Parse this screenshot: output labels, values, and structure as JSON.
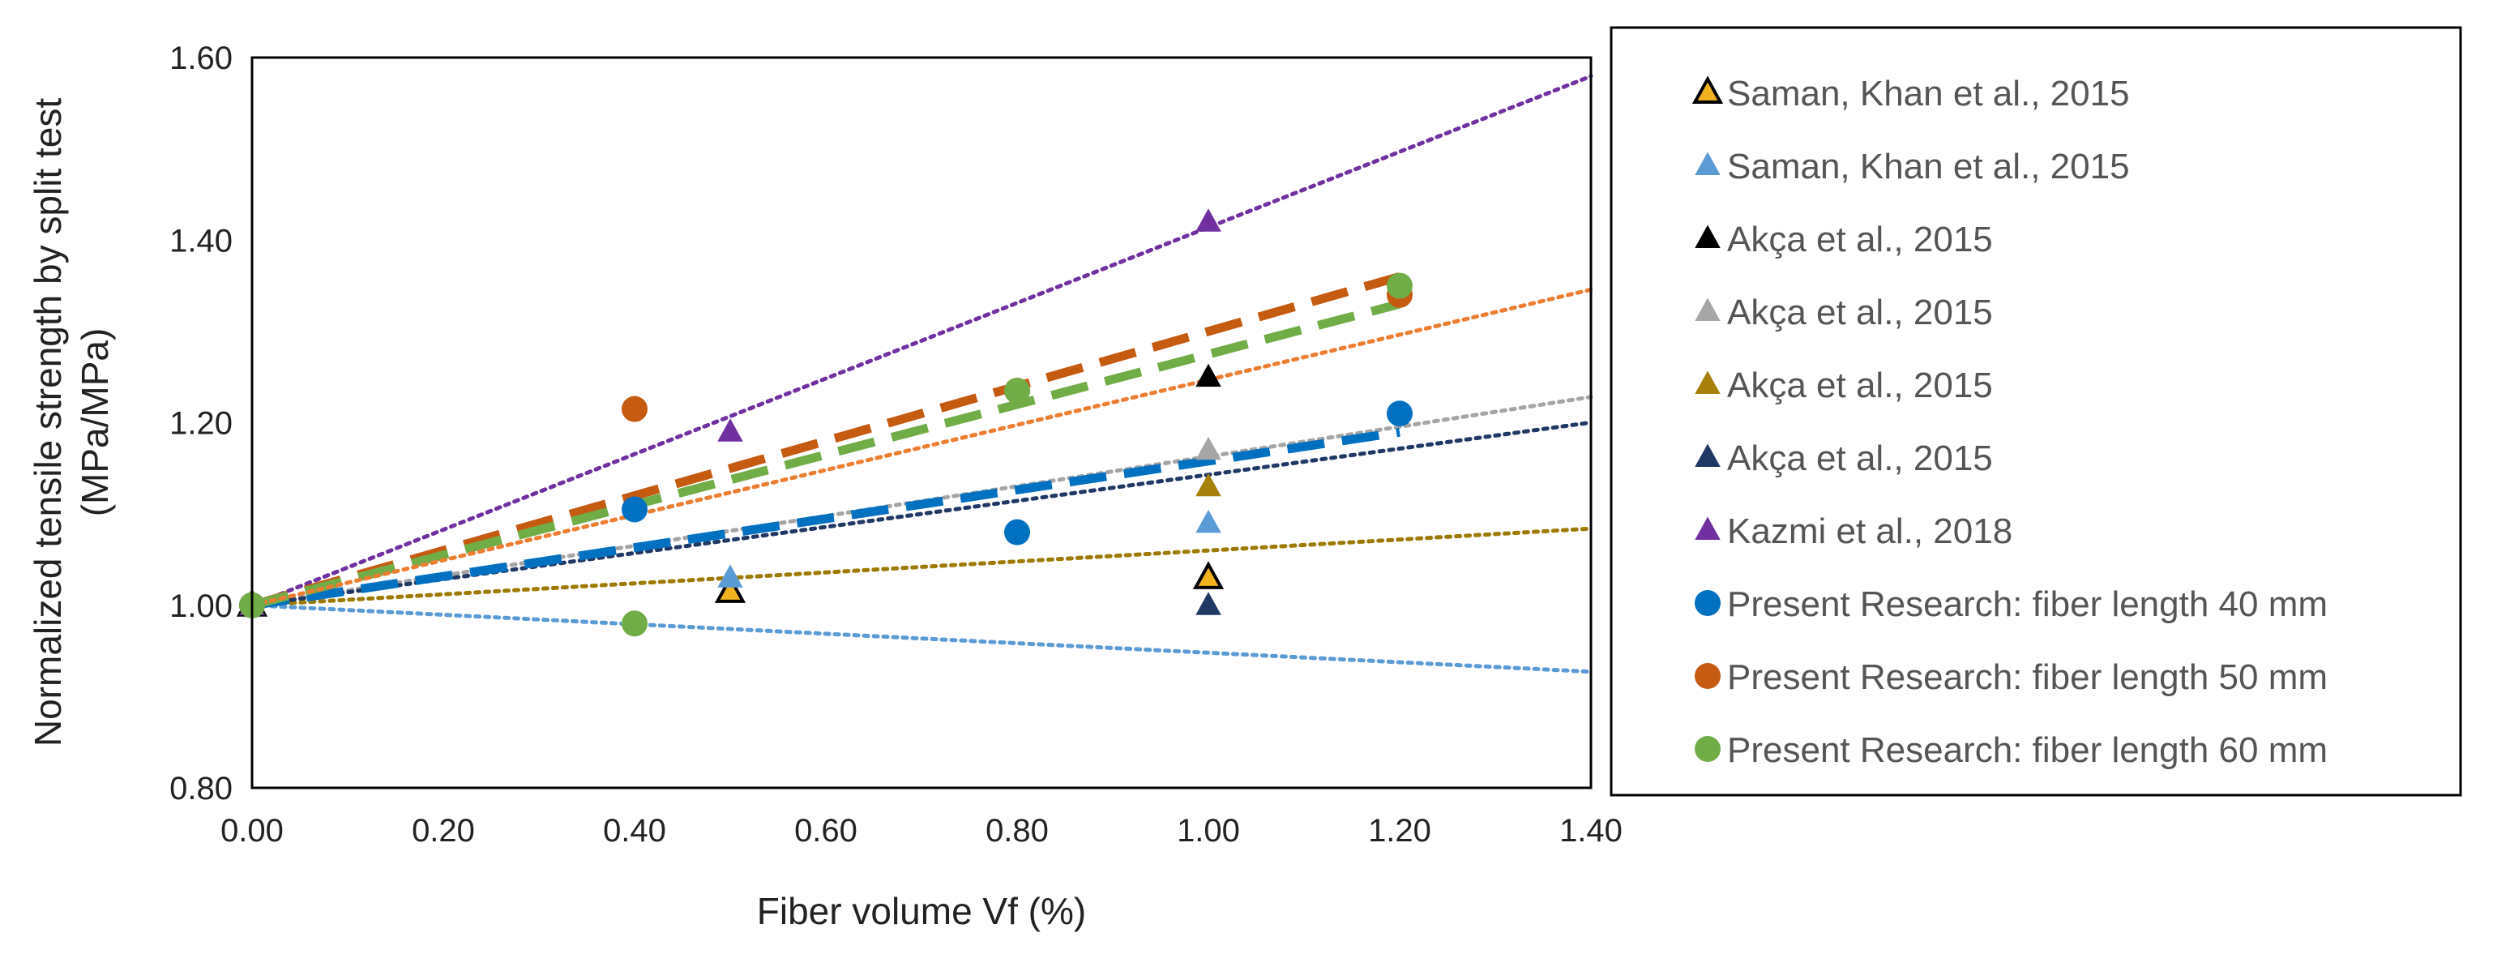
{
  "chart_data": {
    "type": "scatter",
    "xlabel": "Fiber volume Vf (%)",
    "ylabel": "Normalized tensile strength by split test (MPa/MPa)",
    "ylabel_lines": [
      "Normalized tensile strength by split test",
      "(MPa/MPa)"
    ],
    "xlim": [
      0,
      1.4
    ],
    "ylim": [
      0.8,
      1.6
    ],
    "x_ticks": [
      "0.00",
      "0.20",
      "0.40",
      "0.60",
      "0.80",
      "1.00",
      "1.20",
      "1.40"
    ],
    "y_ticks": [
      "0.80",
      "1.00",
      "1.20",
      "1.40",
      "1.60"
    ],
    "grid": false,
    "legend_position": "right",
    "series": [
      {
        "name": "Saman, Khan et al., 2015",
        "marker": "triangle",
        "color": "#F2B21E",
        "edge": "#000000",
        "x": [
          0,
          0.5,
          1.0
        ],
        "y": [
          1.0,
          1.015,
          1.03
        ],
        "trend": {
          "style": "dotted",
          "color": "#9C7A00",
          "slope": 0.06,
          "intercept": 1.0
        }
      },
      {
        "name": "Saman, Khan et al., 2015",
        "marker": "triangle",
        "color": "#5B9BD5",
        "edge": "",
        "x": [
          0,
          0.5,
          1.0
        ],
        "y": [
          1.0,
          1.03,
          1.09
        ],
        "trend": {
          "style": "dotted",
          "color": "#5B9BD5",
          "slope": -0.052,
          "intercept": 1.0
        }
      },
      {
        "name": "Akça et al., 2015",
        "marker": "triangle",
        "color": "#000000",
        "edge": "",
        "x": [
          0,
          1.0
        ],
        "y": [
          1.0,
          1.25
        ],
        "trend": null
      },
      {
        "name": "Akça et al., 2015",
        "marker": "triangle",
        "color": "#A5A5A5",
        "edge": "",
        "x": [
          0,
          1.0
        ],
        "y": [
          1.0,
          1.17
        ],
        "trend": {
          "style": "dotted",
          "color": "#A5A5A5",
          "slope": 0.163,
          "intercept": 1.0
        }
      },
      {
        "name": "Akça et al., 2015",
        "marker": "triangle",
        "color": "#A6800A",
        "edge": "",
        "x": [
          0,
          1.0
        ],
        "y": [
          1.0,
          1.13
        ],
        "trend": null
      },
      {
        "name": "Akça et al., 2015",
        "marker": "triangle",
        "color": "#1F3864",
        "edge": "",
        "x": [
          0,
          1.0
        ],
        "y": [
          1.0,
          1.0
        ],
        "trend": {
          "style": "dotted",
          "color": "#203864",
          "slope": 0.143,
          "intercept": 1.0
        }
      },
      {
        "name": "Kazmi et al., 2018",
        "marker": "triangle",
        "color": "#7030A0",
        "edge": "",
        "x": [
          0,
          0.5,
          1.0
        ],
        "y": [
          1.0,
          1.19,
          1.42
        ],
        "trend": {
          "style": "dotted",
          "color": "#7030A0",
          "slope": 0.414,
          "intercept": 1.0
        }
      },
      {
        "name": "Present Research: fiber length 40 mm",
        "marker": "circle",
        "color": "#0070C0",
        "edge": "",
        "x": [
          0,
          0.4,
          0.8,
          1.2
        ],
        "y": [
          1.0,
          1.105,
          1.08,
          1.21
        ],
        "trend": {
          "style": "dashed",
          "color": "#0070C0",
          "slope": 0.158,
          "intercept": 1.0,
          "xmax": 1.2
        }
      },
      {
        "name": "Present Research: fiber length 50 mm",
        "marker": "circle",
        "color": "#C55A11",
        "edge": "",
        "x": [
          0,
          0.4,
          0.8,
          1.2
        ],
        "y": [
          1.0,
          1.215,
          1.235,
          1.34
        ],
        "trend": {
          "style": "dashed",
          "color": "#C55A11",
          "slope": 0.3,
          "intercept": 1.0,
          "xmax": 1.2
        }
      },
      {
        "name": "Present Research: fiber length 60 mm",
        "marker": "circle",
        "color": "#70AD47",
        "edge": "",
        "x": [
          0,
          0.4,
          0.8,
          1.2
        ],
        "y": [
          1.0,
          0.98,
          1.235,
          1.35
        ],
        "trend": {
          "style": "dashed",
          "color": "#70AD47",
          "slope": 0.275,
          "intercept": 1.0,
          "xmax": 1.2
        }
      }
    ],
    "extra_trendlines": [
      {
        "style": "dotted",
        "color": "#ED7D31",
        "slope": 0.247,
        "intercept": 1.0
      }
    ]
  }
}
